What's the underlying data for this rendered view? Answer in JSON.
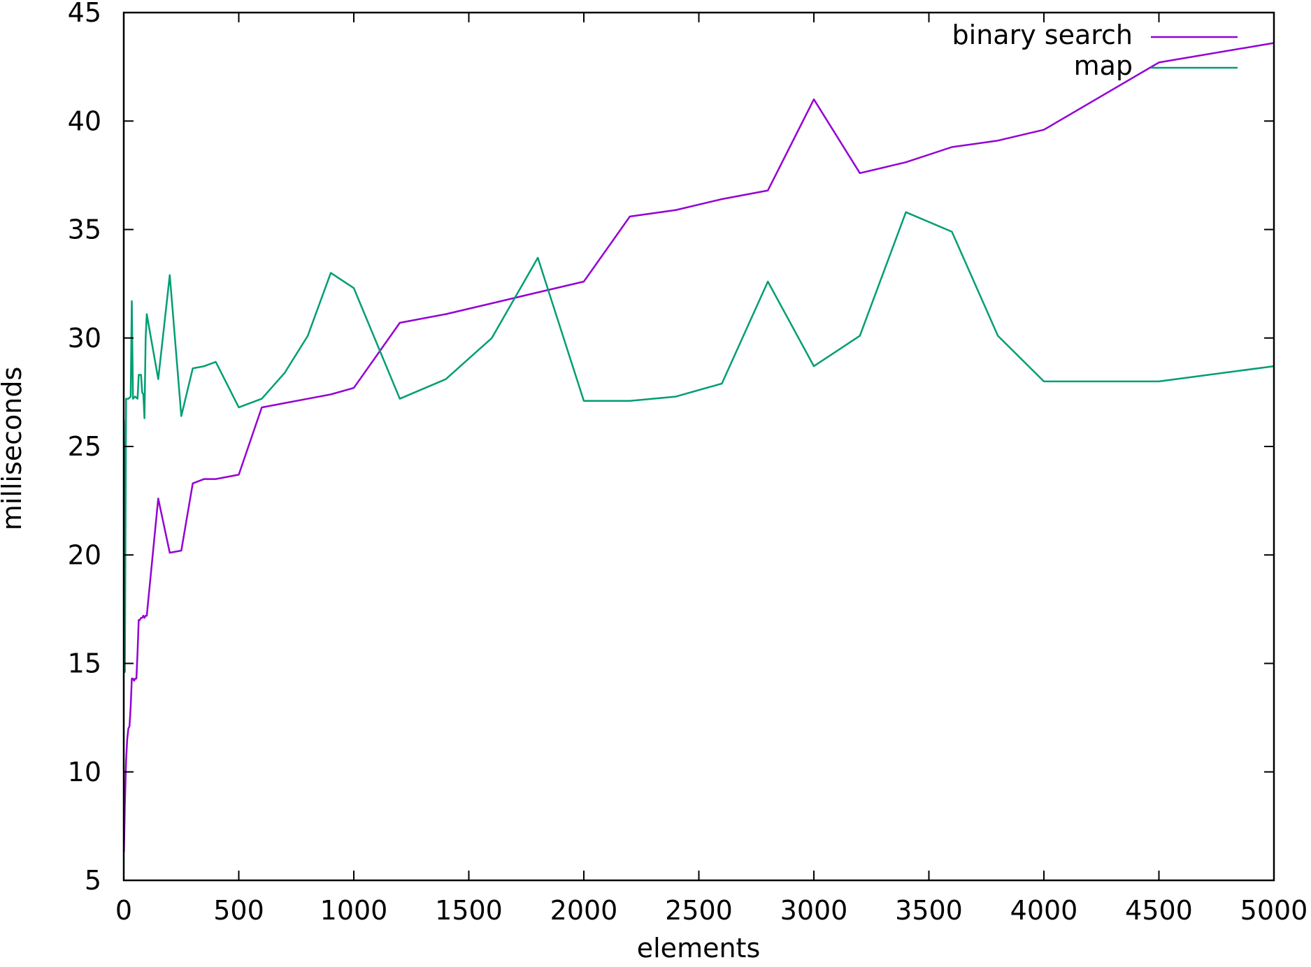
{
  "chart_data": {
    "type": "line",
    "title": "",
    "xlabel": "elements",
    "ylabel": "milliseconds",
    "xlim": [
      0,
      5000
    ],
    "ylim": [
      5,
      45
    ],
    "x_ticks": [
      0,
      500,
      1000,
      1500,
      2000,
      2500,
      3000,
      3500,
      4000,
      4500,
      5000
    ],
    "y_ticks": [
      5,
      10,
      15,
      20,
      25,
      30,
      35,
      40,
      45
    ],
    "grid": false,
    "legend_position": "top-right",
    "series": [
      {
        "name": "binary search",
        "color": "#9400d3",
        "points": [
          [
            1,
            6.3
          ],
          [
            5,
            8.5
          ],
          [
            10,
            10.5
          ],
          [
            15,
            11.5
          ],
          [
            20,
            12.0
          ],
          [
            25,
            12.1
          ],
          [
            30,
            13.0
          ],
          [
            35,
            14.3
          ],
          [
            40,
            14.3
          ],
          [
            45,
            14.2
          ],
          [
            50,
            14.3
          ],
          [
            55,
            14.3
          ],
          [
            60,
            15.5
          ],
          [
            65,
            17.0
          ],
          [
            70,
            17.0
          ],
          [
            75,
            17.1
          ],
          [
            80,
            17.1
          ],
          [
            85,
            17.2
          ],
          [
            90,
            17.1
          ],
          [
            95,
            17.2
          ],
          [
            100,
            17.2
          ],
          [
            150,
            22.6
          ],
          [
            200,
            20.1
          ],
          [
            250,
            20.2
          ],
          [
            300,
            23.3
          ],
          [
            350,
            23.5
          ],
          [
            400,
            23.5
          ],
          [
            500,
            23.7
          ],
          [
            600,
            26.8
          ],
          [
            700,
            27.0
          ],
          [
            800,
            27.2
          ],
          [
            900,
            27.4
          ],
          [
            1000,
            27.7
          ],
          [
            1200,
            30.7
          ],
          [
            1400,
            31.1
          ],
          [
            1600,
            31.6
          ],
          [
            1800,
            32.1
          ],
          [
            2000,
            32.6
          ],
          [
            2200,
            35.6
          ],
          [
            2400,
            35.9
          ],
          [
            2600,
            36.4
          ],
          [
            2800,
            36.8
          ],
          [
            3000,
            41.0
          ],
          [
            3200,
            37.6
          ],
          [
            3400,
            38.1
          ],
          [
            3600,
            38.8
          ],
          [
            3800,
            39.1
          ],
          [
            4000,
            39.6
          ],
          [
            4500,
            42.7
          ],
          [
            5000,
            43.6
          ]
        ]
      },
      {
        "name": "map",
        "color": "#009e73",
        "points": [
          [
            1,
            26.2
          ],
          [
            5,
            14.6
          ],
          [
            10,
            27.2
          ],
          [
            20,
            27.2
          ],
          [
            30,
            27.3
          ],
          [
            35,
            31.7
          ],
          [
            40,
            27.2
          ],
          [
            50,
            27.3
          ],
          [
            60,
            27.2
          ],
          [
            65,
            28.3
          ],
          [
            70,
            28.3
          ],
          [
            75,
            28.3
          ],
          [
            80,
            27.5
          ],
          [
            85,
            27.4
          ],
          [
            90,
            26.3
          ],
          [
            95,
            30.0
          ],
          [
            100,
            31.1
          ],
          [
            150,
            28.1
          ],
          [
            200,
            32.9
          ],
          [
            250,
            26.4
          ],
          [
            300,
            28.6
          ],
          [
            350,
            28.7
          ],
          [
            400,
            28.9
          ],
          [
            500,
            26.8
          ],
          [
            600,
            27.2
          ],
          [
            700,
            28.4
          ],
          [
            800,
            30.1
          ],
          [
            900,
            33.0
          ],
          [
            1000,
            32.3
          ],
          [
            1200,
            27.2
          ],
          [
            1400,
            28.1
          ],
          [
            1600,
            30.0
          ],
          [
            1800,
            33.7
          ],
          [
            2000,
            27.1
          ],
          [
            2200,
            27.1
          ],
          [
            2400,
            27.3
          ],
          [
            2600,
            27.9
          ],
          [
            2800,
            32.6
          ],
          [
            3000,
            28.7
          ],
          [
            3200,
            30.1
          ],
          [
            3400,
            35.8
          ],
          [
            3600,
            34.9
          ],
          [
            3800,
            30.1
          ],
          [
            4000,
            28.0
          ],
          [
            4500,
            28.0
          ],
          [
            5000,
            28.7
          ]
        ]
      }
    ]
  }
}
